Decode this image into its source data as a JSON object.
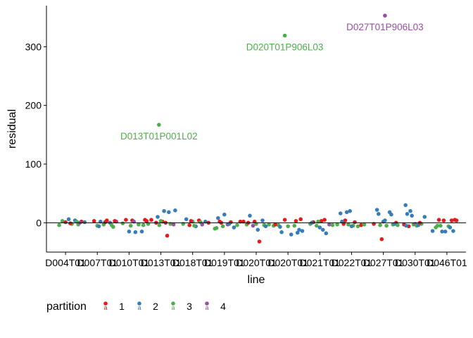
{
  "chart_data": {
    "type": "scatter",
    "xlabel": "line",
    "ylabel": "residual",
    "ylim": [
      -50,
      370
    ],
    "yticks": [
      0,
      100,
      200,
      300
    ],
    "categories": [
      "D004T01",
      "D007T01",
      "D010T01",
      "D013T01",
      "D018T01",
      "D019T01",
      "D020T01",
      "D020T01",
      "D021T01",
      "D022T01",
      "D027T01",
      "D030T01",
      "D046T01"
    ],
    "reference_line": 0,
    "grid": false,
    "legend": {
      "title": "partition",
      "position": "bottom-left",
      "entries": [
        {
          "label": "1",
          "color": "#e41a1c"
        },
        {
          "label": "2",
          "color": "#377eb8"
        },
        {
          "label": "3",
          "color": "#4daf4a"
        },
        {
          "label": "4",
          "color": "#984ea3"
        }
      ]
    },
    "outliers": [
      {
        "label": "D013T01P001L02",
        "x": 2.94,
        "y": 167,
        "partition": "3",
        "color": "#4daf4a"
      },
      {
        "label": "D020T01P906L03",
        "x": 6.9,
        "y": 319,
        "partition": "3",
        "color": "#4daf4a"
      },
      {
        "label": "D027T01P906L03",
        "x": 10.05,
        "y": 353,
        "partition": "4",
        "color": "#984ea3"
      }
    ],
    "points": [
      {
        "x": -0.1,
        "y": 3,
        "p": 3
      },
      {
        "x": 0.0,
        "y": 1,
        "p": 1
      },
      {
        "x": 0.1,
        "y": 6,
        "p": 2
      },
      {
        "x": 0.2,
        "y": -2,
        "p": 3
      },
      {
        "x": 0.3,
        "y": 4,
        "p": 2
      },
      {
        "x": 0.4,
        "y": -3,
        "p": 3
      },
      {
        "x": 0.5,
        "y": 2,
        "p": 1
      },
      {
        "x": 0.6,
        "y": 1,
        "p": 2
      },
      {
        "x": -0.2,
        "y": -4,
        "p": 3
      },
      {
        "x": 0.45,
        "y": 0,
        "p": 4
      },
      {
        "x": 0.15,
        "y": -1,
        "p": 1
      },
      {
        "x": 0.35,
        "y": 2,
        "p": 3
      },
      {
        "x": 0.9,
        "y": 3,
        "p": 1
      },
      {
        "x": 1.0,
        "y": -5,
        "p": 3
      },
      {
        "x": 1.1,
        "y": 2,
        "p": 2
      },
      {
        "x": 1.2,
        "y": -3,
        "p": 3
      },
      {
        "x": 1.3,
        "y": 4,
        "p": 1
      },
      {
        "x": 1.4,
        "y": 0,
        "p": 2
      },
      {
        "x": 1.5,
        "y": -7,
        "p": 3
      },
      {
        "x": 1.6,
        "y": 2,
        "p": 4
      },
      {
        "x": 1.05,
        "y": -6,
        "p": 2
      },
      {
        "x": 1.25,
        "y": 1,
        "p": 1
      },
      {
        "x": 1.45,
        "y": -4,
        "p": 3
      },
      {
        "x": 1.55,
        "y": 3,
        "p": 1
      },
      {
        "x": 1.8,
        "y": -1,
        "p": 3
      },
      {
        "x": 1.9,
        "y": 5,
        "p": 1
      },
      {
        "x": 2.0,
        "y": -15,
        "p": 2
      },
      {
        "x": 2.1,
        "y": 4,
        "p": 1
      },
      {
        "x": 2.2,
        "y": -16,
        "p": 2
      },
      {
        "x": 2.3,
        "y": -3,
        "p": 3
      },
      {
        "x": 2.4,
        "y": -15,
        "p": 2
      },
      {
        "x": 2.5,
        "y": 5,
        "p": 1
      },
      {
        "x": 2.6,
        "y": -2,
        "p": 3
      },
      {
        "x": 2.7,
        "y": 5,
        "p": 1
      },
      {
        "x": 2.15,
        "y": 2,
        "p": 4
      },
      {
        "x": 2.45,
        "y": -4,
        "p": 3
      },
      {
        "x": 2.05,
        "y": -5,
        "p": 3
      },
      {
        "x": 2.55,
        "y": 3,
        "p": 1
      },
      {
        "x": 2.85,
        "y": 0,
        "p": 1
      },
      {
        "x": 2.9,
        "y": 10,
        "p": 2
      },
      {
        "x": 2.95,
        "y": -4,
        "p": 3
      },
      {
        "x": 3.05,
        "y": 2,
        "p": 1
      },
      {
        "x": 3.1,
        "y": 20,
        "p": 2
      },
      {
        "x": 3.2,
        "y": -22,
        "p": 1
      },
      {
        "x": 3.25,
        "y": 18,
        "p": 2
      },
      {
        "x": 3.3,
        "y": -2,
        "p": 3
      },
      {
        "x": 3.4,
        "y": -3,
        "p": 4
      },
      {
        "x": 3.45,
        "y": 21,
        "p": 2
      },
      {
        "x": 3.0,
        "y": 3,
        "p": 3
      },
      {
        "x": 3.15,
        "y": 0,
        "p": 1
      },
      {
        "x": 3.7,
        "y": -2,
        "p": 3
      },
      {
        "x": 3.8,
        "y": 6,
        "p": 2
      },
      {
        "x": 3.9,
        "y": -4,
        "p": 1
      },
      {
        "x": 4.0,
        "y": 2,
        "p": 3
      },
      {
        "x": 4.1,
        "y": -6,
        "p": 2
      },
      {
        "x": 4.2,
        "y": 4,
        "p": 1
      },
      {
        "x": 4.3,
        "y": -3,
        "p": 4
      },
      {
        "x": 4.4,
        "y": 2,
        "p": 2
      },
      {
        "x": 4.5,
        "y": 0,
        "p": 1
      },
      {
        "x": 4.05,
        "y": -5,
        "p": 3
      },
      {
        "x": 4.25,
        "y": 1,
        "p": 3
      },
      {
        "x": 3.95,
        "y": 3,
        "p": 1
      },
      {
        "x": 4.7,
        "y": -10,
        "p": 3
      },
      {
        "x": 4.8,
        "y": 8,
        "p": 2
      },
      {
        "x": 4.85,
        "y": 2,
        "p": 1
      },
      {
        "x": 4.95,
        "y": -6,
        "p": 3
      },
      {
        "x": 5.0,
        "y": 14,
        "p": 2
      },
      {
        "x": 5.1,
        "y": -3,
        "p": 4
      },
      {
        "x": 5.2,
        "y": 1,
        "p": 1
      },
      {
        "x": 5.3,
        "y": -8,
        "p": 2
      },
      {
        "x": 5.4,
        "y": -4,
        "p": 3
      },
      {
        "x": 5.5,
        "y": 2,
        "p": 1
      },
      {
        "x": 4.75,
        "y": -9,
        "p": 3
      },
      {
        "x": 5.15,
        "y": -2,
        "p": 2
      },
      {
        "x": 4.9,
        "y": 0,
        "p": 1
      },
      {
        "x": 5.6,
        "y": 2,
        "p": 1
      },
      {
        "x": 5.7,
        "y": -3,
        "p": 3
      },
      {
        "x": 5.8,
        "y": 12,
        "p": 2
      },
      {
        "x": 5.9,
        "y": -5,
        "p": 4
      },
      {
        "x": 5.95,
        "y": 2,
        "p": 1
      },
      {
        "x": 6.05,
        "y": -12,
        "p": 2
      },
      {
        "x": 6.1,
        "y": -32,
        "p": 1
      },
      {
        "x": 6.2,
        "y": 4,
        "p": 2
      },
      {
        "x": 6.25,
        "y": -4,
        "p": 3
      },
      {
        "x": 6.3,
        "y": -6,
        "p": 2
      },
      {
        "x": 5.75,
        "y": 0,
        "p": 1
      },
      {
        "x": 6.0,
        "y": -2,
        "p": 3
      },
      {
        "x": 6.4,
        "y": -3,
        "p": 3
      },
      {
        "x": 6.55,
        "y": -5,
        "p": 3
      },
      {
        "x": 6.7,
        "y": -4,
        "p": 3
      },
      {
        "x": 6.8,
        "y": -16,
        "p": 2
      },
      {
        "x": 6.9,
        "y": 5,
        "p": 1
      },
      {
        "x": 7.0,
        "y": -6,
        "p": 3
      },
      {
        "x": 7.1,
        "y": -20,
        "p": 2
      },
      {
        "x": 7.25,
        "y": 3,
        "p": 1
      },
      {
        "x": 7.3,
        "y": -17,
        "p": 2
      },
      {
        "x": 7.4,
        "y": 6,
        "p": 1
      },
      {
        "x": 7.45,
        "y": -14,
        "p": 2
      },
      {
        "x": 6.75,
        "y": -7,
        "p": 2
      },
      {
        "x": 7.2,
        "y": -5,
        "p": 3
      },
      {
        "x": 7.35,
        "y": -12,
        "p": 2
      },
      {
        "x": 6.6,
        "y": -3,
        "p": 1
      },
      {
        "x": 7.7,
        "y": -2,
        "p": 3
      },
      {
        "x": 7.8,
        "y": 1,
        "p": 1
      },
      {
        "x": 7.9,
        "y": -5,
        "p": 3
      },
      {
        "x": 8.0,
        "y": -8,
        "p": 2
      },
      {
        "x": 8.05,
        "y": 3,
        "p": 1
      },
      {
        "x": 8.15,
        "y": 5,
        "p": 1
      },
      {
        "x": 8.2,
        "y": -18,
        "p": 2
      },
      {
        "x": 8.3,
        "y": -3,
        "p": 4
      },
      {
        "x": 8.4,
        "y": -4,
        "p": 3
      },
      {
        "x": 7.75,
        "y": 0,
        "p": 2
      },
      {
        "x": 8.1,
        "y": -12,
        "p": 2
      },
      {
        "x": 7.95,
        "y": 2,
        "p": 3
      },
      {
        "x": 8.55,
        "y": -3,
        "p": 3
      },
      {
        "x": 8.65,
        "y": 16,
        "p": 2
      },
      {
        "x": 8.8,
        "y": 4,
        "p": 1
      },
      {
        "x": 8.85,
        "y": 18,
        "p": 2
      },
      {
        "x": 8.9,
        "y": -3,
        "p": 3
      },
      {
        "x": 8.95,
        "y": 20,
        "p": 2
      },
      {
        "x": 9.05,
        "y": -5,
        "p": 3
      },
      {
        "x": 9.1,
        "y": 1,
        "p": 1
      },
      {
        "x": 9.2,
        "y": -6,
        "p": 3
      },
      {
        "x": 9.3,
        "y": -4,
        "p": 1
      },
      {
        "x": 9.4,
        "y": -3,
        "p": 3
      },
      {
        "x": 8.75,
        "y": -2,
        "p": 1
      },
      {
        "x": 9.0,
        "y": -6,
        "p": 2
      },
      {
        "x": 8.7,
        "y": 2,
        "p": 2
      },
      {
        "x": 9.7,
        "y": -2,
        "p": 1
      },
      {
        "x": 9.8,
        "y": 22,
        "p": 2
      },
      {
        "x": 9.85,
        "y": 15,
        "p": 2
      },
      {
        "x": 9.9,
        "y": -4,
        "p": 3
      },
      {
        "x": 9.95,
        "y": -28,
        "p": 1
      },
      {
        "x": 10.0,
        "y": 2,
        "p": 2
      },
      {
        "x": 10.1,
        "y": -5,
        "p": 3
      },
      {
        "x": 10.2,
        "y": 18,
        "p": 2
      },
      {
        "x": 10.25,
        "y": 14,
        "p": 2
      },
      {
        "x": 10.3,
        "y": -3,
        "p": 3
      },
      {
        "x": 10.4,
        "y": 0,
        "p": 1
      },
      {
        "x": 10.45,
        "y": -4,
        "p": 3
      },
      {
        "x": 10.05,
        "y": 4,
        "p": 2
      },
      {
        "x": 10.35,
        "y": -2,
        "p": 2
      },
      {
        "x": 10.7,
        "y": 30,
        "p": 2
      },
      {
        "x": 10.75,
        "y": 15,
        "p": 2
      },
      {
        "x": 10.8,
        "y": -6,
        "p": 1
      },
      {
        "x": 10.85,
        "y": 20,
        "p": 2
      },
      {
        "x": 10.9,
        "y": 12,
        "p": 2
      },
      {
        "x": 10.95,
        "y": -3,
        "p": 3
      },
      {
        "x": 11.0,
        "y": -2,
        "p": 4
      },
      {
        "x": 11.05,
        "y": -5,
        "p": 3
      },
      {
        "x": 11.1,
        "y": -4,
        "p": 2
      },
      {
        "x": 11.2,
        "y": -2,
        "p": 3
      },
      {
        "x": 11.3,
        "y": 10,
        "p": 2
      },
      {
        "x": 10.65,
        "y": -3,
        "p": 1
      },
      {
        "x": 11.15,
        "y": 0,
        "p": 1
      },
      {
        "x": 10.72,
        "y": -5,
        "p": 2
      },
      {
        "x": 11.55,
        "y": -14,
        "p": 2
      },
      {
        "x": 11.65,
        "y": -8,
        "p": 3
      },
      {
        "x": 11.75,
        "y": 5,
        "p": 1
      },
      {
        "x": 11.8,
        "y": -5,
        "p": 3
      },
      {
        "x": 11.85,
        "y": -15,
        "p": 2
      },
      {
        "x": 11.9,
        "y": 4,
        "p": 1
      },
      {
        "x": 11.95,
        "y": -15,
        "p": 2
      },
      {
        "x": 12.05,
        "y": -6,
        "p": 3
      },
      {
        "x": 12.15,
        "y": 4,
        "p": 1
      },
      {
        "x": 12.2,
        "y": -14,
        "p": 2
      },
      {
        "x": 12.25,
        "y": 5,
        "p": 1
      },
      {
        "x": 12.3,
        "y": 4,
        "p": 1
      },
      {
        "x": 11.7,
        "y": -5,
        "p": 3
      },
      {
        "x": 12.1,
        "y": -8,
        "p": 2
      }
    ]
  }
}
